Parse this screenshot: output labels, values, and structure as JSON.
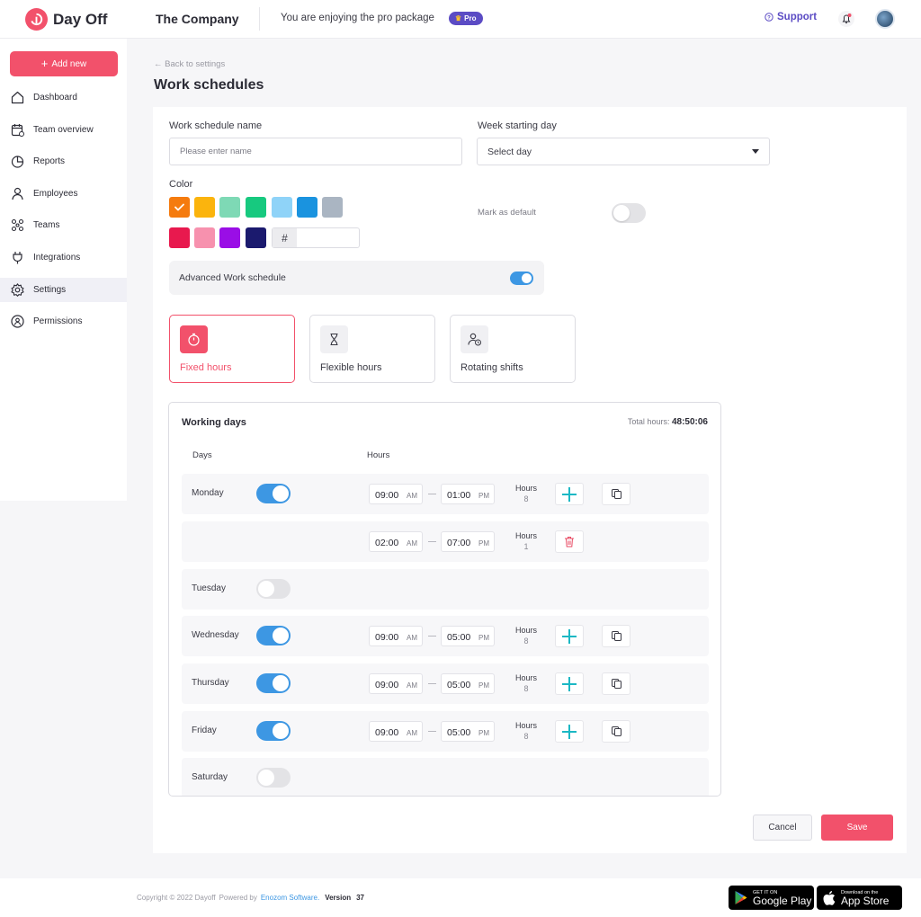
{
  "header": {
    "app_name": "Day Off",
    "company": "The Company",
    "pro_text": "You are enjoying the pro package",
    "pro_badge": "Pro",
    "support": "Support"
  },
  "sidebar": {
    "add_new": "Add new",
    "items": [
      {
        "label": "Dashboard",
        "icon": "home-icon"
      },
      {
        "label": "Team overview",
        "icon": "calendar-icon"
      },
      {
        "label": "Reports",
        "icon": "pie-chart-icon"
      },
      {
        "label": "Employees",
        "icon": "user-icon"
      },
      {
        "label": "Teams",
        "icon": "team-icon"
      },
      {
        "label": "Integrations",
        "icon": "plug-icon"
      },
      {
        "label": "Settings",
        "icon": "gear-icon"
      },
      {
        "label": "Permissions",
        "icon": "shield-icon"
      }
    ],
    "active_item": "Settings"
  },
  "page": {
    "back": "Back to settings",
    "title": "Work schedules"
  },
  "form": {
    "name_label": "Work schedule name",
    "name_placeholder": "Please enter name",
    "week_label": "Week starting day",
    "week_value": "Select day",
    "color_label": "Color",
    "colors_row1": [
      "#f57b0e",
      "#fbb40d",
      "#7ed9b5",
      "#17c97f",
      "#8fd3f8",
      "#1a93df",
      "#aab5c2"
    ],
    "colors_row2": [
      "#e8194e",
      "#f791ae",
      "#9a0ee6",
      "#1b1a6e"
    ],
    "selected_color": "#f57b0e",
    "hex_symbol": "#",
    "mark_default_label": "Mark as default",
    "advanced_label": "Advanced Work schedule",
    "advanced_on": true,
    "mark_default_on": false
  },
  "schedule_types": [
    {
      "label": "Fixed hours",
      "icon": "stopwatch-icon",
      "active": true
    },
    {
      "label": "Flexible hours",
      "icon": "hourglass-icon",
      "active": false
    },
    {
      "label": "Rotating shifts",
      "icon": "user-clock-icon",
      "active": false
    }
  ],
  "working_days": {
    "title": "Working days",
    "total_label": "Total hours:",
    "total_value": "48:50:06",
    "col_days": "Days",
    "col_hours": "Hours",
    "hours_label": "Hours",
    "rows": [
      {
        "day": "Monday",
        "on": true,
        "start": "09:00",
        "start_ap": "AM",
        "end": "01:00",
        "end_ap": "PM",
        "hours": "8",
        "action": "add"
      },
      {
        "day": "",
        "on": null,
        "start": "02:00",
        "start_ap": "AM",
        "end": "07:00",
        "end_ap": "PM",
        "hours": "1",
        "action": "delete"
      },
      {
        "day": "Tuesday",
        "on": false
      },
      {
        "day": "Wednesday",
        "on": true,
        "start": "09:00",
        "start_ap": "AM",
        "end": "05:00",
        "end_ap": "PM",
        "hours": "8",
        "action": "add"
      },
      {
        "day": "Thursday",
        "on": true,
        "start": "09:00",
        "start_ap": "AM",
        "end": "05:00",
        "end_ap": "PM",
        "hours": "8",
        "action": "add"
      },
      {
        "day": "Friday",
        "on": true,
        "start": "09:00",
        "start_ap": "AM",
        "end": "05:00",
        "end_ap": "PM",
        "hours": "8",
        "action": "add"
      },
      {
        "day": "Saturday",
        "on": false
      }
    ]
  },
  "actions": {
    "cancel": "Cancel",
    "save": "Save"
  },
  "footer": {
    "copyright": "Copyright © 2022 Dayoff",
    "powered_by": "Powered by",
    "company": "Enozom Software.",
    "version_label": "Version",
    "version": "37",
    "google_small": "GET IT ON",
    "google_big": "Google Play",
    "apple_small": "Download on the",
    "apple_big": "App Store"
  },
  "colors": {
    "brand": "#f2516b",
    "accent": "#5b4bc4",
    "toggle_on": "#3d97e3",
    "add_icon": "#1cb8c4"
  }
}
